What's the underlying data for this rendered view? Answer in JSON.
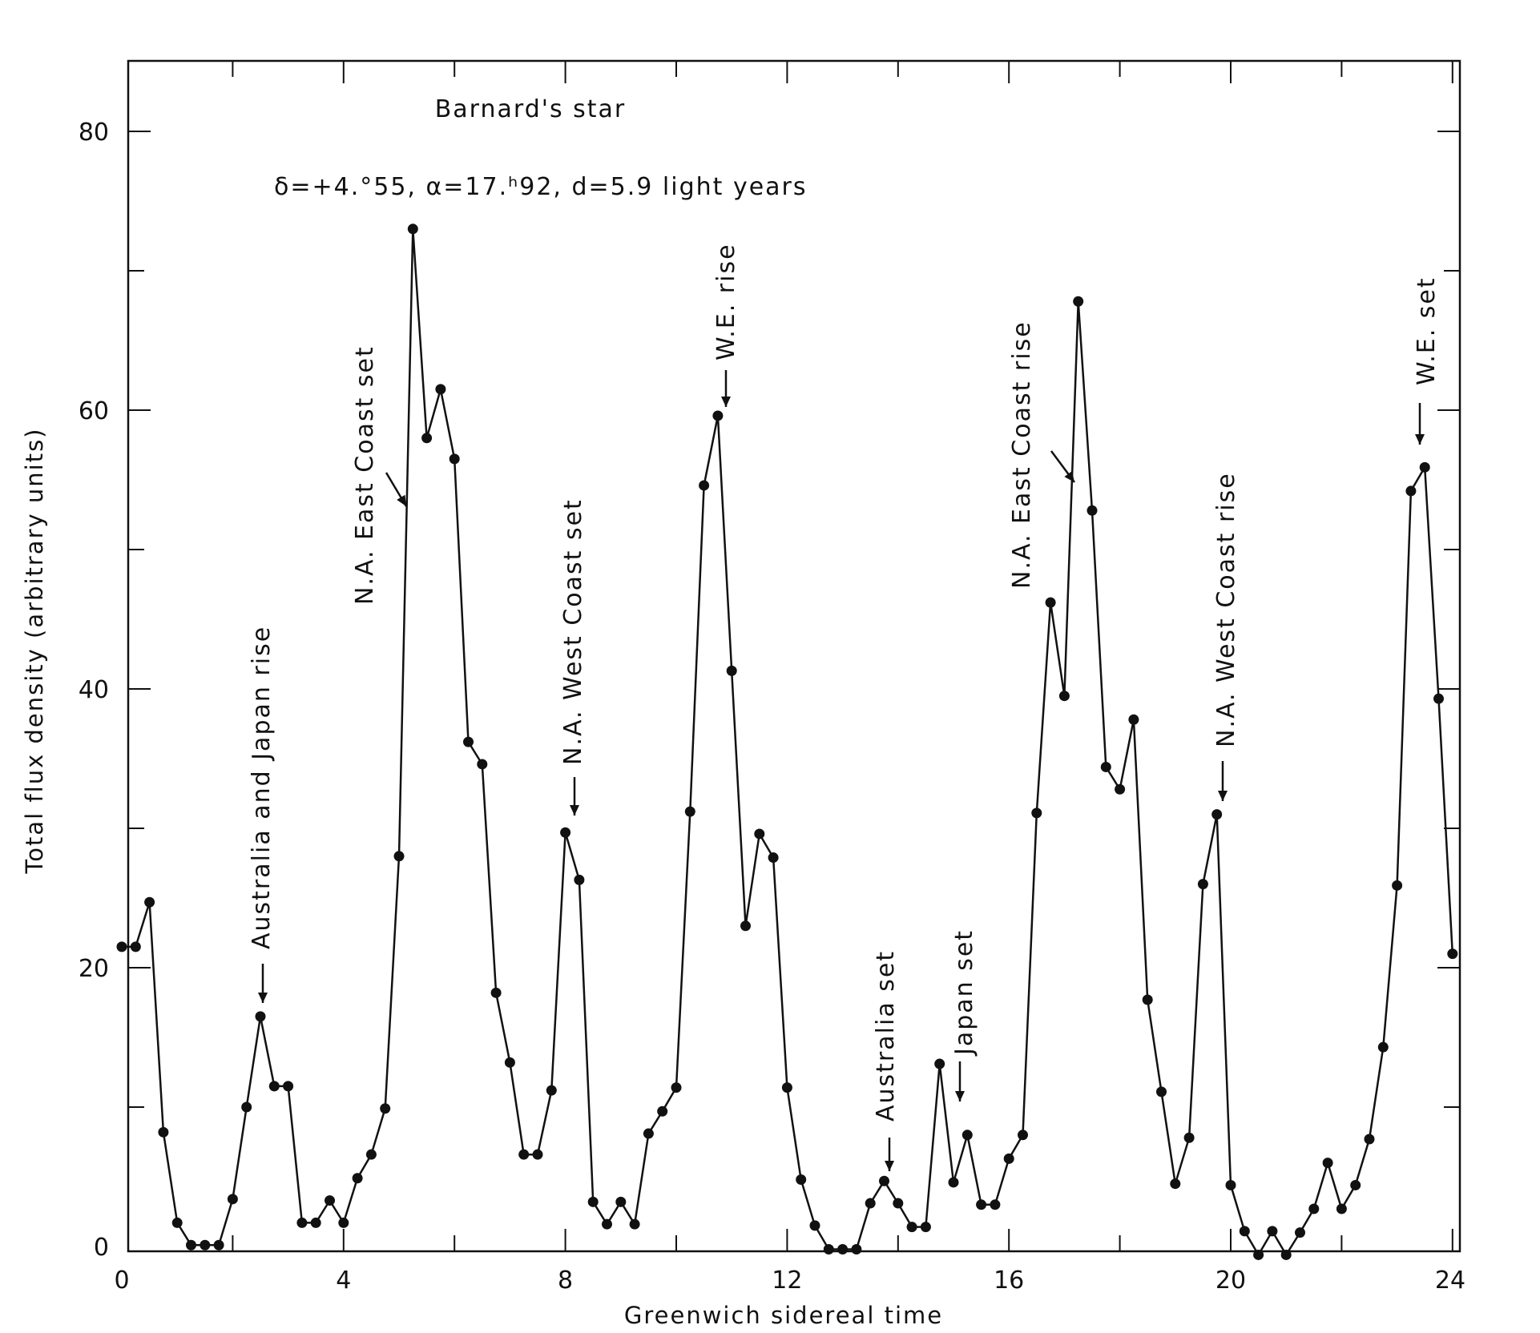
{
  "chart_data": {
    "type": "line",
    "title": "Barnard's star",
    "subtitle": "δ=+4.°55, α=17.ʰ92, d=5.9 light years",
    "xlabel": "Greenwich sidereal time",
    "ylabel": "Total flux density (arbitrary units)",
    "xlim": [
      0,
      24
    ],
    "ylim": [
      -1,
      85
    ],
    "xticks": [
      0,
      4,
      8,
      12,
      16,
      20,
      24
    ],
    "yticks": [
      0,
      20,
      40,
      60,
      80
    ],
    "grid": false,
    "series": [
      {
        "x": [
          0.0,
          0.25,
          0.5,
          0.75,
          1.0,
          1.25,
          1.5,
          1.75,
          2.0,
          2.25,
          2.5,
          2.75,
          3.0,
          3.25,
          3.5,
          3.75,
          4.0,
          4.25,
          4.5,
          4.75,
          5.0,
          5.25,
          5.5,
          5.75,
          6.0,
          6.25,
          6.5,
          6.75,
          7.0,
          7.25,
          7.5,
          7.75,
          8.0,
          8.25,
          8.5,
          8.75,
          9.0,
          9.25,
          9.5,
          9.75,
          10.0,
          10.25,
          10.5,
          10.75,
          11.0,
          11.25,
          11.5,
          11.75,
          12.0,
          12.25,
          12.5,
          12.75,
          13.0,
          13.25,
          13.5,
          13.75,
          14.0,
          14.25,
          14.5,
          14.75,
          15.0,
          15.25,
          15.5,
          15.75,
          16.0,
          16.25,
          16.5,
          16.75,
          17.0,
          17.25,
          17.5,
          17.75,
          18.0,
          18.25,
          18.5,
          18.75,
          19.0,
          19.25,
          19.5,
          19.75,
          20.0,
          20.25,
          20.5,
          20.75,
          21.0,
          21.25,
          21.5,
          21.75,
          22.0,
          22.25,
          22.5,
          22.75,
          23.0,
          23.25,
          23.5,
          23.75,
          24.0
        ],
        "y": [
          21.5,
          21.5,
          24.7,
          8.2,
          1.7,
          0.1,
          0.1,
          0.1,
          3.4,
          10.0,
          16.5,
          11.5,
          11.5,
          1.7,
          1.7,
          3.3,
          1.7,
          4.9,
          6.6,
          9.9,
          28.0,
          73.0,
          58.0,
          61.5,
          56.5,
          36.2,
          34.6,
          18.2,
          13.2,
          6.6,
          6.6,
          11.2,
          29.7,
          26.3,
          3.2,
          1.6,
          3.2,
          1.6,
          8.1,
          9.7,
          11.4,
          31.2,
          54.6,
          59.6,
          41.3,
          23.0,
          29.6,
          27.9,
          11.4,
          4.8,
          1.5,
          -0.2,
          -0.2,
          -0.2,
          3.1,
          4.7,
          3.1,
          1.4,
          1.4,
          13.1,
          4.6,
          8.0,
          3.0,
          3.0,
          6.3,
          8.0,
          31.1,
          46.2,
          39.5,
          67.8,
          52.8,
          34.4,
          32.8,
          37.8,
          17.7,
          11.1,
          4.5,
          7.8,
          26.0,
          31.0,
          4.4,
          1.1,
          -0.6,
          1.1,
          -0.6,
          1.0,
          2.7,
          6.0,
          2.7,
          4.4,
          7.7,
          14.3,
          25.9,
          54.2,
          55.9,
          39.3,
          21.0
        ]
      }
    ],
    "annotations": [
      {
        "text": "Australia and Japan rise",
        "x": 2.5,
        "arrow": "down"
      },
      {
        "text": "N.A. East Coast set",
        "x": 5.0,
        "arrow": "diagonal"
      },
      {
        "text": "N.A. West Coast set",
        "x": 8.0,
        "arrow": "down"
      },
      {
        "text": "W.E. rise",
        "x": 10.75,
        "arrow": "down"
      },
      {
        "text": "Australia set",
        "x": 13.75,
        "arrow": "down"
      },
      {
        "text": "Japan set",
        "x": 15.0,
        "arrow": "down"
      },
      {
        "text": "N.A. East Coast rise",
        "x": 17.0,
        "arrow": "diagonal"
      },
      {
        "text": "N.A. West Coast rise",
        "x": 19.75,
        "arrow": "down"
      },
      {
        "text": "W.E. set",
        "x": 23.5,
        "arrow": "down"
      }
    ]
  }
}
